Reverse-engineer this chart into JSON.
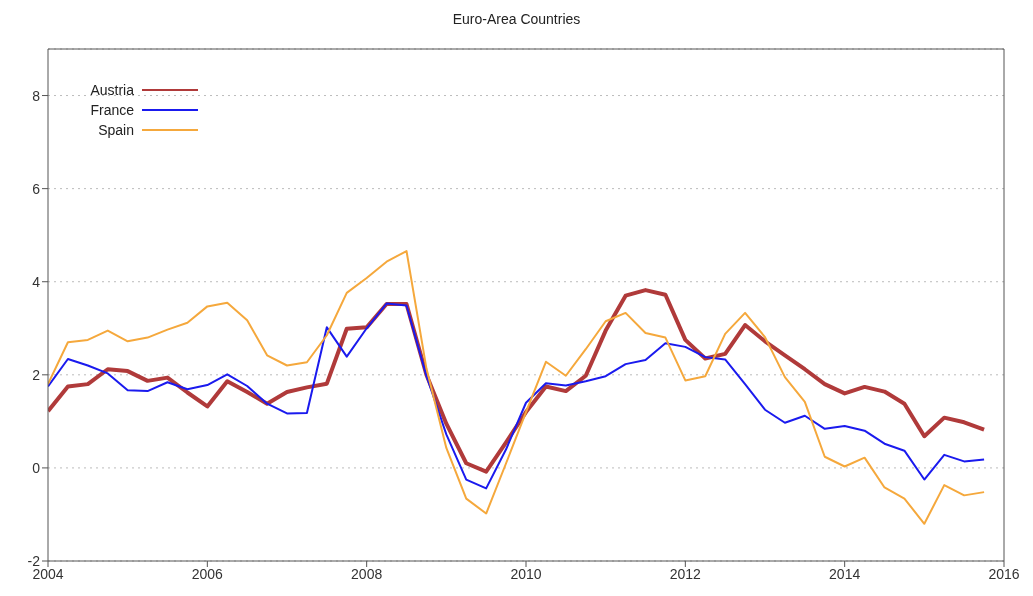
{
  "chart_data": {
    "type": "line",
    "title": "Euro-Area Countries",
    "x": [
      2004,
      2004.25,
      2004.5,
      2004.75,
      2005,
      2005.25,
      2005.5,
      2005.75,
      2006,
      2006.25,
      2006.5,
      2006.75,
      2007,
      2007.25,
      2007.5,
      2007.75,
      2008,
      2008.25,
      2008.5,
      2008.75,
      2009,
      2009.25,
      2009.5,
      2009.75,
      2010,
      2010.25,
      2010.5,
      2010.75,
      2011,
      2011.25,
      2011.5,
      2011.75,
      2012,
      2012.25,
      2012.5,
      2012.75,
      2013,
      2013.25,
      2013.5,
      2013.75,
      2014,
      2014.25,
      2014.5,
      2014.75,
      2015,
      2015.25,
      2015.5,
      2015.75
    ],
    "series": [
      {
        "name": "Austria",
        "color": "#b03a3a",
        "values": [
          1.22,
          1.75,
          1.8,
          2.12,
          2.08,
          1.87,
          1.94,
          1.62,
          1.32,
          1.86,
          1.63,
          1.38,
          1.63,
          1.73,
          1.81,
          2.99,
          3.02,
          3.52,
          3.52,
          2.0,
          0.95,
          0.1,
          -0.08,
          0.55,
          1.2,
          1.75,
          1.65,
          1.98,
          2.95,
          3.7,
          3.82,
          3.72,
          2.75,
          2.35,
          2.45,
          3.07,
          2.72,
          2.42,
          2.12,
          1.8,
          1.6,
          1.74,
          1.64,
          1.38,
          0.68,
          1.08,
          0.98,
          0.82
        ]
      },
      {
        "name": "France",
        "color": "#1a1aee",
        "values": [
          1.75,
          2.34,
          2.2,
          2.03,
          1.67,
          1.65,
          1.84,
          1.69,
          1.78,
          2.01,
          1.76,
          1.38,
          1.17,
          1.18,
          3.02,
          2.39,
          3.0,
          3.53,
          3.49,
          1.98,
          0.72,
          -0.25,
          -0.44,
          0.4,
          1.4,
          1.82,
          1.77,
          1.86,
          1.97,
          2.23,
          2.32,
          2.68,
          2.6,
          2.38,
          2.33,
          1.8,
          1.25,
          0.97,
          1.12,
          0.84,
          0.9,
          0.8,
          0.52,
          0.37,
          -0.25,
          0.28,
          0.14,
          0.18
        ]
      },
      {
        "name": "Spain",
        "color": "#f5a83c",
        "values": [
          1.8,
          2.7,
          2.75,
          2.95,
          2.72,
          2.8,
          2.97,
          3.12,
          3.47,
          3.55,
          3.17,
          2.42,
          2.2,
          2.27,
          2.85,
          3.76,
          4.08,
          4.43,
          4.66,
          2.14,
          0.43,
          -0.66,
          -0.98,
          0.1,
          1.2,
          2.28,
          1.98,
          2.55,
          3.15,
          3.33,
          2.9,
          2.8,
          1.88,
          1.97,
          2.88,
          3.33,
          2.81,
          1.95,
          1.42,
          0.24,
          0.03,
          0.22,
          -0.42,
          -0.66,
          -1.2,
          -0.37,
          -0.59,
          -0.52
        ]
      }
    ],
    "xlim": [
      2004,
      2016
    ],
    "xticks": [
      2004,
      2006,
      2008,
      2010,
      2012,
      2014,
      2016
    ],
    "ylim": [
      -2,
      9
    ],
    "yticks": [
      -2,
      0,
      2,
      4,
      6,
      8
    ],
    "grid": "y",
    "legend": "top left",
    "marker": "none",
    "line_style": "solid"
  }
}
